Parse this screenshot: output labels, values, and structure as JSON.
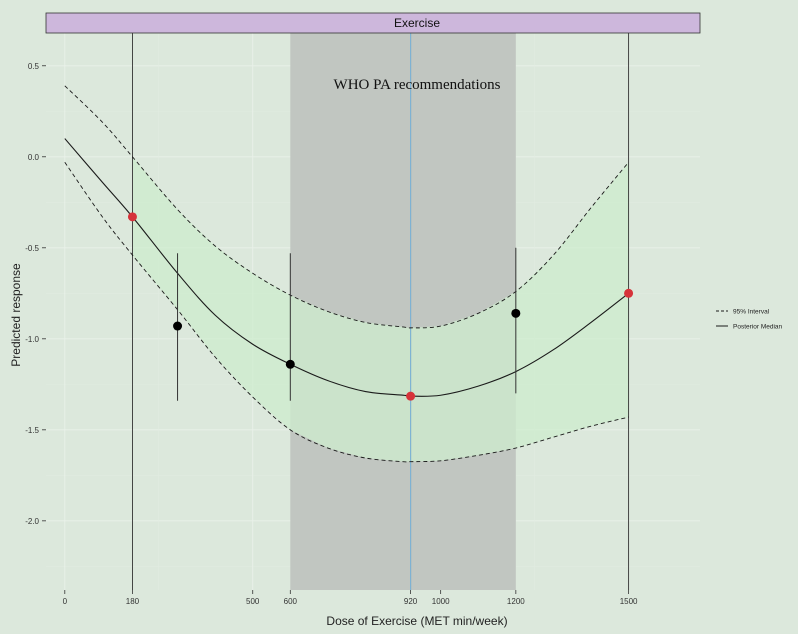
{
  "chart_data": {
    "type": "line",
    "strip_title": "Exercise",
    "xlabel": "Dose of Exercise (MET min/week)",
    "ylabel": "Predicted response",
    "xlim": [
      -50,
      1690
    ],
    "ylim": [
      -2.38,
      0.68
    ],
    "x_ticks": [
      0,
      180,
      500,
      600,
      920,
      1000,
      1200,
      1500
    ],
    "y_ticks": [
      0.5,
      0.0,
      -0.5,
      -1.0,
      -1.5,
      -2.0
    ],
    "y_tick_labels": [
      "0.5",
      "0.0",
      "-0.5",
      "-1.0",
      "-1.5",
      "-2.0"
    ],
    "annotation": "WHO PA recommendations",
    "shaded_region": {
      "x_start": 600,
      "x_end": 1200,
      "color": "#c1c6c1"
    },
    "ribbon": {
      "x_start": 180,
      "x_end": 1500,
      "color": "#cdeccd"
    },
    "vertical_lines": [
      180,
      920,
      1500
    ],
    "reference_line": {
      "x": 920,
      "color": "#7fb6d8"
    },
    "series": [
      {
        "name": "Posterior Median",
        "style": "solid",
        "x": [
          0,
          100,
          180,
          300,
          400,
          500,
          600,
          700,
          800,
          900,
          920,
          1000,
          1100,
          1200,
          1300,
          1400,
          1500
        ],
        "y": [
          0.1,
          -0.14,
          -0.33,
          -0.64,
          -0.87,
          -1.03,
          -1.14,
          -1.23,
          -1.29,
          -1.31,
          -1.315,
          -1.31,
          -1.26,
          -1.18,
          -1.06,
          -0.91,
          -0.75
        ]
      },
      {
        "name": "95% Interval",
        "style": "dashed",
        "bound": "upper",
        "x": [
          0,
          100,
          180,
          300,
          400,
          500,
          600,
          700,
          800,
          900,
          920,
          1000,
          1100,
          1200,
          1300,
          1400,
          1500
        ],
        "y": [
          0.39,
          0.19,
          0.0,
          -0.29,
          -0.49,
          -0.64,
          -0.76,
          -0.85,
          -0.91,
          -0.935,
          -0.94,
          -0.93,
          -0.86,
          -0.74,
          -0.54,
          -0.28,
          -0.03
        ]
      },
      {
        "name": "95% Interval",
        "style": "dashed",
        "bound": "lower",
        "x": [
          0,
          100,
          180,
          300,
          400,
          500,
          600,
          700,
          800,
          900,
          920,
          1000,
          1100,
          1200,
          1300,
          1400,
          1500
        ],
        "y": [
          -0.03,
          -0.33,
          -0.54,
          -0.84,
          -1.1,
          -1.32,
          -1.5,
          -1.6,
          -1.655,
          -1.675,
          -1.675,
          -1.67,
          -1.64,
          -1.6,
          -1.54,
          -1.48,
          -1.43
        ]
      }
    ],
    "points": [
      {
        "x": 180,
        "y": -0.33,
        "color": "#d6333a"
      },
      {
        "x": 920,
        "y": -1.315,
        "color": "#d6333a"
      },
      {
        "x": 1500,
        "y": -0.75,
        "color": "#d6333a"
      },
      {
        "x": 300,
        "y": -0.93,
        "color": "#000000",
        "lo": -1.34,
        "hi": -0.53
      },
      {
        "x": 600,
        "y": -1.14,
        "color": "#000000",
        "lo": -1.34,
        "hi": -0.53
      },
      {
        "x": 1200,
        "y": -0.86,
        "color": "#000000",
        "lo": -1.3,
        "hi": -0.5
      }
    ],
    "legend": [
      {
        "label": "95% Interval",
        "style": "dashed"
      },
      {
        "label": "Posterior Median",
        "style": "solid"
      }
    ],
    "legend_position": "right",
    "grid": true
  },
  "colors": {
    "background": "#dce8dc",
    "panel": "#dce8dc",
    "strip": "#cdb7dc",
    "grid_major": "#e9f1e9",
    "grid_minor": "#e2ece2"
  }
}
